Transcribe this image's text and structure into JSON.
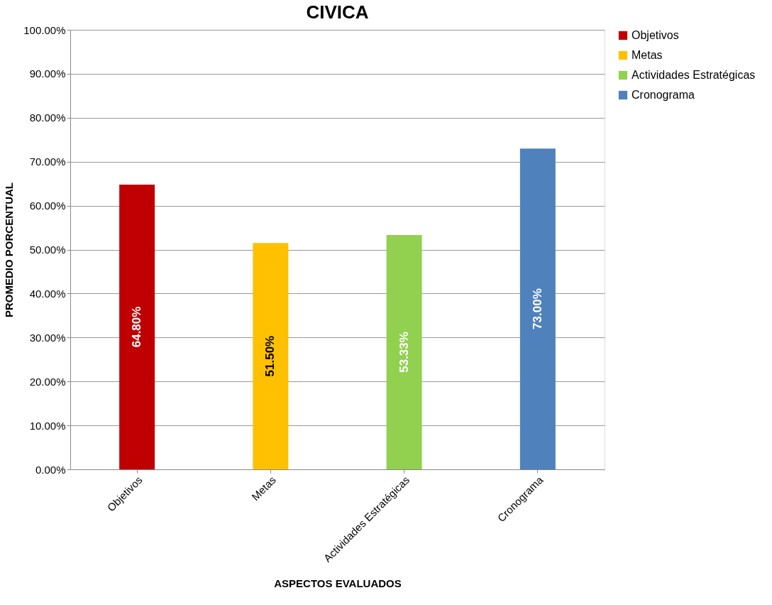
{
  "chart_data": {
    "type": "bar",
    "title": "CIVICA",
    "xlabel": "ASPECTOS EVALUADOS",
    "ylabel": "PROMEDIO PORCENTUAL",
    "categories": [
      "Objetivos",
      "Metas",
      "Actividades Estratégicas",
      "Cronograma"
    ],
    "series": [
      {
        "name": "Objetivos",
        "color": "#c00000",
        "values": [
          64.8,
          null,
          null,
          null
        ],
        "value_labels": [
          "64.80%",
          null,
          null,
          null
        ]
      },
      {
        "name": "Metas",
        "color": "#ffc000",
        "values": [
          null,
          51.5,
          null,
          null
        ],
        "value_labels": [
          null,
          "51.50%",
          null,
          null
        ]
      },
      {
        "name": "Actividades Estratégicas",
        "color": "#92d050",
        "values": [
          null,
          null,
          53.33,
          null
        ],
        "value_labels": [
          null,
          null,
          "53.33%",
          null
        ]
      },
      {
        "name": "Cronograma",
        "color": "#4f81bd",
        "values": [
          null,
          null,
          null,
          73.0
        ],
        "value_labels": [
          null,
          null,
          null,
          "73.00%"
        ]
      }
    ],
    "ylim": [
      0,
      100
    ],
    "yticks": [
      {
        "value": 0,
        "label": "0.00%"
      },
      {
        "value": 10,
        "label": "10.00%"
      },
      {
        "value": 20,
        "label": "20.00%"
      },
      {
        "value": 30,
        "label": "30.00%"
      },
      {
        "value": 40,
        "label": "40.00%"
      },
      {
        "value": 50,
        "label": "50.00%"
      },
      {
        "value": 60,
        "label": "60.00%"
      },
      {
        "value": 70,
        "label": "70.00%"
      },
      {
        "value": 80,
        "label": "80.00%"
      },
      {
        "value": 90,
        "label": "90.00%"
      },
      {
        "value": 100,
        "label": "100.00%"
      }
    ],
    "grid": "y",
    "legend": "right"
  }
}
